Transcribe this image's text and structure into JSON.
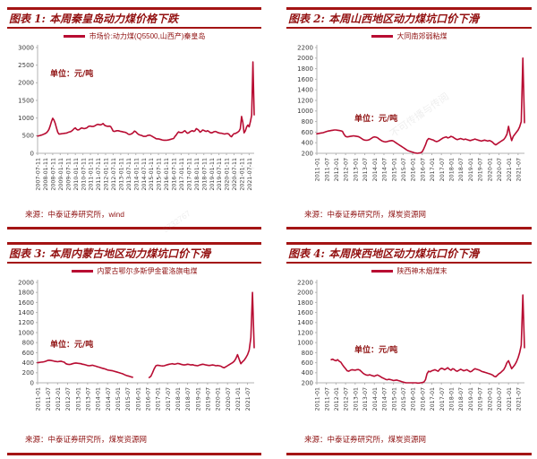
{
  "palette": {
    "line_color": "#b80c32",
    "dark_red_text": "#8f1212",
    "rule_red": "#a41414",
    "axis_gray": "#b3b3b3",
    "tick_text": "#3a3a3a"
  },
  "watermarks": [
    "不可传播与传阅",
    "2022-01",
    "5732767"
  ],
  "chart_data": [
    {
      "type": "line",
      "figure_title": "图表 1: 本周秦皇岛动力煤价格下跌",
      "legend": "市场价:动力煤(Q5500,山西产)秦皇岛",
      "unit_label": "单位：元/吨",
      "source": "来源：中泰证券研究所，wind",
      "ylim": [
        0,
        3000
      ],
      "yticks": [
        3000,
        2500,
        2000,
        1500,
        1000,
        500,
        0
      ],
      "x_start": "2007-07",
      "x_interval": "monthly",
      "xticklabels": [
        "2007-07-11",
        "2008-01-11",
        "2008-07-11",
        "2009-01-11",
        "2009-07-11",
        "2010-01-11",
        "2010-07-11",
        "2011-01-11",
        "2011-07-11",
        "2012-01-11",
        "2012-07-11",
        "2013-01-11",
        "2013-07-11",
        "2014-01-11",
        "2014-07-11",
        "2015-01-11",
        "2015-07-11",
        "2016-01-11",
        "2016-07-11",
        "2017-01-11",
        "2017-07-11",
        "2018-01-11",
        "2018-07-11",
        "2019-01-11",
        "2019-07-11",
        "2020-01-11",
        "2020-07-11",
        "2021-01-11",
        "2021-07-11"
      ],
      "values": [
        490,
        495,
        505,
        515,
        530,
        545,
        560,
        580,
        620,
        680,
        780,
        900,
        995,
        940,
        850,
        720,
        600,
        545,
        550,
        555,
        560,
        565,
        570,
        575,
        590,
        605,
        610,
        630,
        660,
        700,
        720,
        680,
        660,
        670,
        700,
        720,
        710,
        700,
        710,
        720,
        750,
        770,
        770,
        760,
        760,
        770,
        790,
        810,
        820,
        810,
        805,
        820,
        845,
        800,
        780,
        770,
        765,
        770,
        760,
        700,
        630,
        620,
        630,
        640,
        640,
        630,
        620,
        615,
        605,
        600,
        590,
        570,
        545,
        535,
        545,
        560,
        590,
        630,
        610,
        570,
        540,
        520,
        510,
        500,
        480,
        480,
        480,
        500,
        510,
        515,
        500,
        480,
        460,
        440,
        415,
        410,
        410,
        400,
        390,
        380,
        370,
        370,
        370,
        375,
        380,
        390,
        400,
        410,
        420,
        475,
        515,
        570,
        607,
        590,
        590,
        590,
        620,
        640,
        600,
        570,
        580,
        610,
        630,
        640,
        620,
        640,
        700,
        680,
        650,
        600,
        620,
        660,
        650,
        630,
        620,
        640,
        620,
        590,
        580,
        590,
        610,
        620,
        610,
        590,
        580,
        570,
        570,
        560,
        550,
        550,
        560,
        560,
        540,
        490,
        470,
        520,
        560,
        560,
        580,
        600,
        630,
        700,
        1045,
        880,
        580,
        640,
        750,
        800,
        750,
        900,
        1080,
        2590,
        1090
      ]
    },
    {
      "type": "line",
      "figure_title": "图表 2: 本周山西地区动力煤坑口价下滑",
      "legend": "大同南郊弱粘煤",
      "unit_label": "单位：元/吨",
      "source": "来源：中泰证券研究所，煤炭资源网",
      "ylim": [
        200,
        2200
      ],
      "yticks": [
        2200,
        2000,
        1800,
        1600,
        1400,
        1200,
        1000,
        800,
        600,
        400,
        200
      ],
      "x_start": "2011-01",
      "x_interval": "monthly",
      "xticklabels": [
        "2011-01",
        "2011-07",
        "2012-01",
        "2012-07",
        "2013-01",
        "2013-07",
        "2014-01",
        "2014-07",
        "2015-01",
        "2015-07",
        "2016-01",
        "2016-07",
        "2017-01",
        "2017-07",
        "2018-01",
        "2018-07",
        "2019-01",
        "2019-07",
        "2020-01",
        "2020-07",
        "2021-01",
        "2021-07"
      ],
      "values": [
        570,
        575,
        580,
        585,
        590,
        600,
        610,
        620,
        625,
        630,
        635,
        640,
        640,
        635,
        630,
        625,
        615,
        560,
        520,
        510,
        515,
        520,
        525,
        530,
        525,
        520,
        515,
        500,
        480,
        460,
        450,
        445,
        450,
        460,
        480,
        500,
        510,
        505,
        495,
        470,
        450,
        430,
        420,
        415,
        420,
        430,
        435,
        440,
        430,
        410,
        390,
        370,
        350,
        330,
        310,
        290,
        270,
        250,
        240,
        230,
        220,
        210,
        205,
        200,
        205,
        210,
        230,
        290,
        360,
        440,
        480,
        470,
        460,
        450,
        430,
        420,
        430,
        450,
        470,
        490,
        500,
        510,
        490,
        500,
        520,
        510,
        490,
        470,
        460,
        470,
        480,
        470,
        460,
        470,
        460,
        450,
        440,
        450,
        460,
        470,
        460,
        450,
        440,
        430,
        440,
        450,
        440,
        430,
        440,
        430,
        410,
        380,
        360,
        380,
        400,
        420,
        440,
        460,
        500,
        560,
        710,
        560,
        440,
        520,
        560,
        600,
        640,
        700,
        800,
        2000,
        780
      ]
    },
    {
      "type": "line",
      "figure_title": "图表 3: 本周内蒙古地区动力煤坑口价下滑",
      "legend": "内蒙古鄂尔多斯伊金霍洛旗电煤",
      "unit_label": "单位：元/吨",
      "source": "来源：中泰证券研究所，煤炭资源网",
      "ylim": [
        0,
        2000
      ],
      "yticks": [
        2000,
        1800,
        1600,
        1400,
        1200,
        1000,
        800,
        600,
        400,
        200,
        0
      ],
      "x_start": "2011-01",
      "x_interval": "monthly",
      "xticklabels": [
        "2011-01",
        "2011-07",
        "2012-01",
        "2012-07",
        "2013-01",
        "2013-07",
        "2014-01",
        "2014-07",
        "2015-01",
        "2015-07",
        "2016-01",
        "2016-07",
        "2017-01",
        "2017-07",
        "2018-01",
        "2018-07",
        "2019-01",
        "2019-07",
        "2020-01",
        "2020-07",
        "2021-01",
        "2021-07"
      ],
      "values": [
        400,
        405,
        410,
        415,
        420,
        430,
        445,
        450,
        445,
        440,
        430,
        425,
        420,
        425,
        430,
        420,
        410,
        380,
        370,
        365,
        370,
        380,
        390,
        395,
        390,
        385,
        380,
        370,
        365,
        355,
        345,
        340,
        345,
        350,
        340,
        330,
        320,
        310,
        300,
        290,
        280,
        270,
        255,
        250,
        245,
        240,
        230,
        220,
        210,
        200,
        190,
        180,
        165,
        150,
        140,
        130,
        120,
        110,
        null,
        null,
        null,
        null,
        null,
        null,
        null,
        null,
        null,
        105,
        130,
        200,
        280,
        340,
        350,
        345,
        340,
        335,
        340,
        350,
        360,
        370,
        375,
        380,
        370,
        375,
        385,
        380,
        370,
        360,
        355,
        360,
        370,
        365,
        355,
        360,
        350,
        345,
        340,
        350,
        360,
        370,
        365,
        355,
        350,
        345,
        350,
        355,
        350,
        340,
        345,
        340,
        330,
        310,
        300,
        320,
        340,
        360,
        380,
        400,
        430,
        480,
        560,
        470,
        380,
        420,
        450,
        500,
        560,
        650,
        900,
        1800,
        700
      ]
    },
    {
      "type": "line",
      "figure_title": "图表 4: 本周陕西地区动力煤坑口价下滑",
      "legend": "陕西神木烟煤末",
      "unit_label": "单位：元/吨",
      "source": "来源：中泰证券研究所，煤炭资源网",
      "ylim": [
        200,
        2200
      ],
      "yticks": [
        2200,
        2000,
        1800,
        1600,
        1400,
        1200,
        1000,
        800,
        600,
        400,
        200
      ],
      "x_start": "2011-01",
      "x_interval": "monthly",
      "xticklabels": [
        "2011-01",
        "2011-07",
        "2012-01",
        "2012-07",
        "2013-01",
        "2013-07",
        "2014-01",
        "2014-07",
        "2015-01",
        "2015-07",
        "2016-01",
        "2016-07",
        "2017-01",
        "2017-07",
        "2018-01",
        "2018-07",
        "2019-01",
        "2019-07",
        "2020-01",
        "2020-07",
        "2021-01",
        "2021-07"
      ],
      "values": [
        null,
        null,
        null,
        null,
        null,
        null,
        null,
        null,
        null,
        660,
        670,
        650,
        640,
        660,
        630,
        610,
        560,
        520,
        480,
        440,
        430,
        450,
        460,
        455,
        450,
        460,
        465,
        450,
        420,
        390,
        370,
        355,
        350,
        360,
        350,
        340,
        330,
        345,
        355,
        340,
        320,
        300,
        285,
        270,
        260,
        270,
        265,
        255,
        245,
        250,
        255,
        245,
        235,
        225,
        215,
        205,
        200,
        200,
        200,
        200,
        200,
        200,
        200,
        195,
        195,
        200,
        205,
        215,
        260,
        380,
        430,
        420,
        440,
        450,
        460,
        445,
        430,
        470,
        490,
        480,
        460,
        480,
        500,
        470,
        450,
        480,
        470,
        440,
        430,
        450,
        470,
        455,
        440,
        450,
        460,
        440,
        420,
        430,
        460,
        480,
        470,
        460,
        450,
        430,
        420,
        410,
        400,
        390,
        380,
        370,
        355,
        330,
        320,
        350,
        380,
        400,
        430,
        460,
        520,
        600,
        640,
        560,
        480,
        520,
        560,
        620,
        700,
        800,
        950,
        1950,
        900
      ]
    }
  ]
}
